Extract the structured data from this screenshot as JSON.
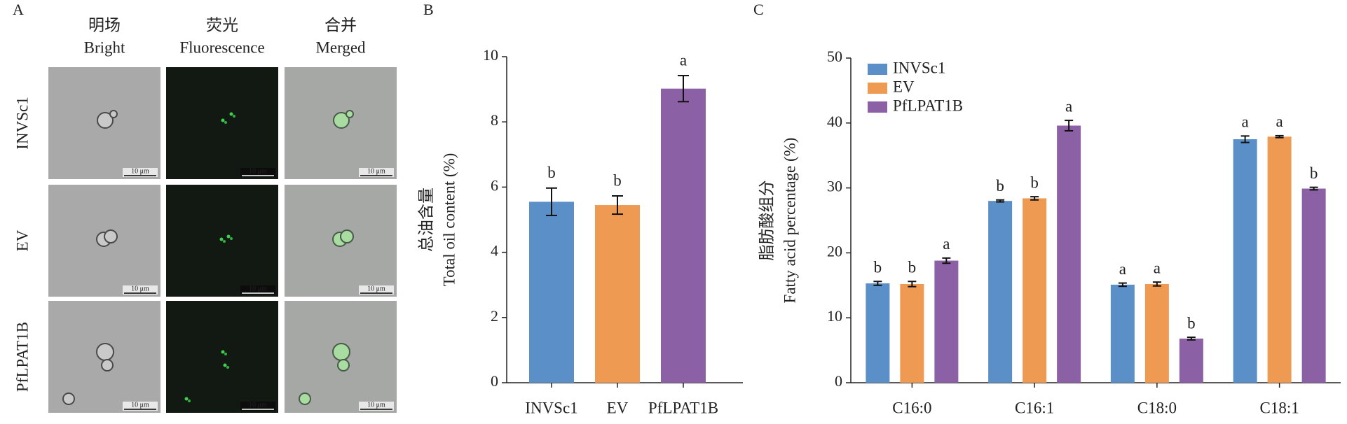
{
  "panel_a": {
    "panel": "A",
    "columns": [
      {
        "zh": "明场",
        "en": "Bright"
      },
      {
        "zh": "荧光",
        "en": "Fluorescence"
      },
      {
        "zh": "合并",
        "en": "Merged"
      }
    ],
    "rows": [
      "INVSc1",
      "EV",
      "PfLPAT1B"
    ],
    "scale_bar": "10 μm"
  },
  "chart_data": [
    {
      "type": "bar",
      "panel": "B",
      "y_label_zh": "总油含量",
      "y_label": "Total oil content (%)",
      "categories": [
        "INVSc1",
        "EV",
        "PfLPAT1B"
      ],
      "values": [
        5.55,
        5.45,
        9.02
      ],
      "errors": [
        0.42,
        0.28,
        0.4
      ],
      "annotations": [
        "b",
        "b",
        "a"
      ],
      "colors": [
        "#5b8fc7",
        "#ef9a52",
        "#8b60a4"
      ],
      "ylim": [
        0,
        10
      ],
      "yticks": [
        0,
        2,
        4,
        6,
        8,
        10
      ],
      "grid": false
    },
    {
      "type": "grouped_bar",
      "panel": "C",
      "y_label_zh": "脂肪酸组分",
      "y_label": "Fatty acid percentage (%)",
      "categories": [
        "C16:0",
        "C16:1",
        "C18:0",
        "C18:1"
      ],
      "series": [
        {
          "name": "INVSc1",
          "color": "#5b8fc7",
          "values": [
            15.3,
            28.0,
            15.1,
            37.5
          ],
          "errors": [
            0.3,
            0.15,
            0.25,
            0.5
          ],
          "annotations": [
            "b",
            "b",
            "a",
            "a"
          ]
        },
        {
          "name": "EV",
          "color": "#ef9a52",
          "values": [
            15.2,
            28.4,
            15.2,
            37.9
          ],
          "errors": [
            0.4,
            0.25,
            0.3,
            0.15
          ],
          "annotations": [
            "b",
            "b",
            "a",
            "a"
          ]
        },
        {
          "name": "PfLPAT1B",
          "color": "#8b60a4",
          "values": [
            18.8,
            39.6,
            6.8,
            29.9
          ],
          "errors": [
            0.4,
            0.8,
            0.2,
            0.2
          ],
          "annotations": [
            "a",
            "a",
            "b",
            "b"
          ]
        }
      ],
      "legend": "upper-left",
      "ylim": [
        0,
        50
      ],
      "yticks": [
        0,
        10,
        20,
        30,
        40,
        50
      ],
      "grid": false
    }
  ]
}
